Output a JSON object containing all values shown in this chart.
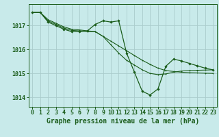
{
  "background_color": "#c8eaea",
  "grid_color": "#aacccc",
  "line_color": "#1a5c1a",
  "marker_color": "#1a5c1a",
  "xlabel": "Graphe pression niveau de la mer (hPa)",
  "xlabel_fontsize": 7,
  "tick_fontsize": 6,
  "ylim": [
    1013.6,
    1017.9
  ],
  "xlim": [
    -0.5,
    23.5
  ],
  "yticks": [
    1014,
    1015,
    1016,
    1017
  ],
  "xticks": [
    0,
    1,
    2,
    3,
    4,
    5,
    6,
    7,
    8,
    9,
    10,
    11,
    12,
    13,
    14,
    15,
    16,
    17,
    18,
    19,
    20,
    21,
    22,
    23
  ],
  "series1": [
    1017.55,
    1017.55,
    1017.25,
    1017.1,
    1016.95,
    1016.85,
    1016.82,
    1016.78,
    1016.75,
    1016.55,
    1016.35,
    1016.15,
    1015.95,
    1015.75,
    1015.55,
    1015.38,
    1015.22,
    1015.12,
    1015.08,
    1015.05,
    1015.03,
    1015.02,
    1015.01,
    1015.0
  ],
  "series2": [
    1017.55,
    1017.55,
    1017.2,
    1017.05,
    1016.9,
    1016.8,
    1016.78,
    1016.75,
    1016.75,
    1016.55,
    1016.2,
    1015.85,
    1015.55,
    1015.35,
    1015.15,
    1015.0,
    1014.95,
    1014.98,
    1015.05,
    1015.1,
    1015.12,
    1015.13,
    1015.14,
    1015.15
  ],
  "series3": [
    1017.55,
    1017.55,
    1017.15,
    1017.0,
    1016.85,
    1016.75,
    1016.75,
    1016.78,
    1017.05,
    1017.2,
    1017.15,
    1017.2,
    1015.85,
    1015.05,
    1014.25,
    1014.1,
    1014.35,
    1015.3,
    1015.6,
    1015.52,
    1015.42,
    1015.32,
    1015.22,
    1015.15
  ]
}
